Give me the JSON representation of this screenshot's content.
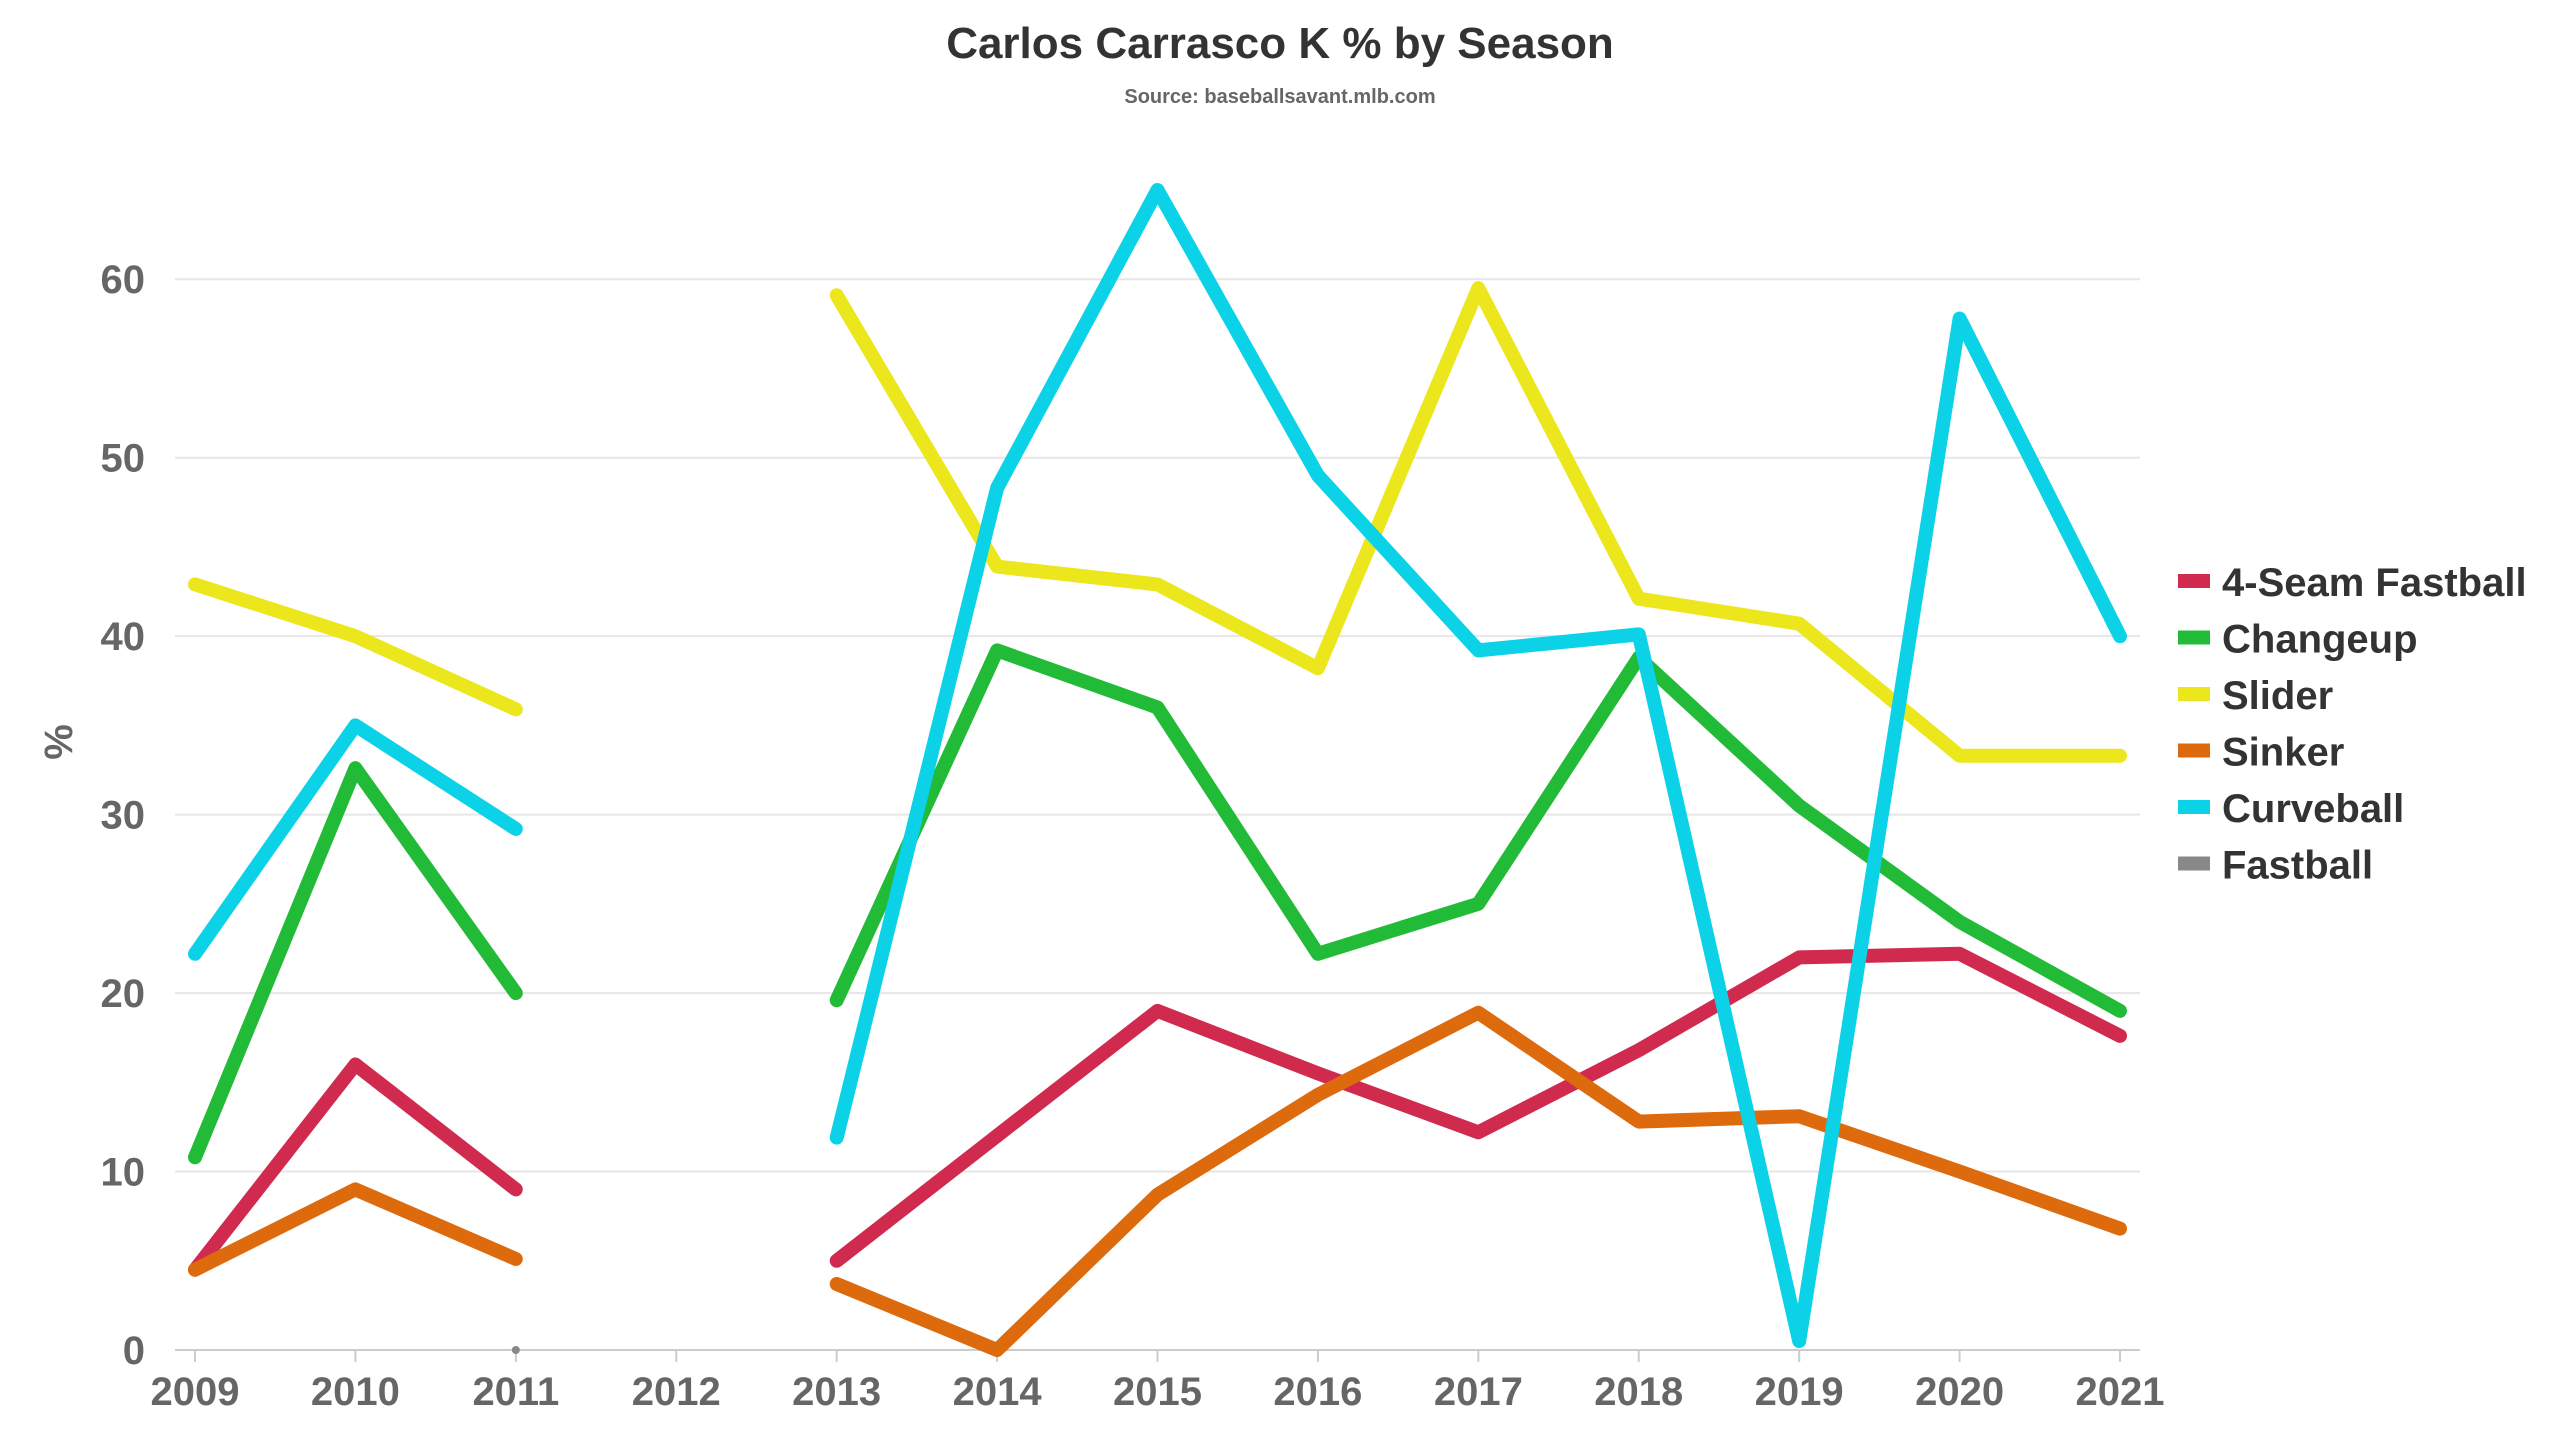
{
  "chart_data": {
    "type": "line",
    "title": "Carlos Carrasco K % by Season",
    "subtitle": "Source: baseballsavant.mlb.com",
    "xlabel": "",
    "ylabel": "%",
    "ylim": [
      0,
      65
    ],
    "yticks": [
      0,
      10,
      20,
      30,
      40,
      50,
      60
    ],
    "grid": true,
    "legend_position": "right",
    "x": [
      "2009",
      "2010",
      "2011",
      "2012",
      "2013",
      "2014",
      "2015",
      "2016",
      "2017",
      "2018",
      "2019",
      "2020",
      "2021"
    ],
    "series": [
      {
        "name": "4-Seam Fastball",
        "color": "#d02a4e",
        "values": [
          4.5,
          16.0,
          9.0,
          null,
          5.0,
          12.0,
          19.0,
          15.5,
          12.2,
          16.8,
          22.0,
          22.2,
          17.6
        ]
      },
      {
        "name": "Changeup",
        "color": "#22bb38",
        "values": [
          10.8,
          32.6,
          20.0,
          null,
          19.6,
          39.2,
          36.0,
          22.2,
          25.0,
          38.8,
          30.5,
          24.0,
          19.0
        ]
      },
      {
        "name": "Slider",
        "color": "#ece61d",
        "values": [
          42.9,
          40.0,
          35.9,
          null,
          59.1,
          43.9,
          42.9,
          38.2,
          59.5,
          42.1,
          40.7,
          33.3,
          33.3
        ]
      },
      {
        "name": "Sinker",
        "color": "#dd6a0c",
        "values": [
          4.5,
          9.0,
          5.1,
          null,
          3.7,
          0.0,
          8.7,
          14.3,
          18.9,
          12.8,
          13.1,
          10.0,
          6.8
        ]
      },
      {
        "name": "Curveball",
        "color": "#0cd2e8",
        "values": [
          22.2,
          35.0,
          29.2,
          null,
          11.9,
          48.3,
          65.0,
          49.0,
          39.2,
          40.1,
          0.5,
          57.8,
          40.0
        ]
      },
      {
        "name": "Fastball",
        "color": "#888888",
        "values": [
          null,
          null,
          0.0,
          null,
          null,
          null,
          null,
          null,
          null,
          null,
          null,
          null,
          null
        ]
      }
    ]
  }
}
